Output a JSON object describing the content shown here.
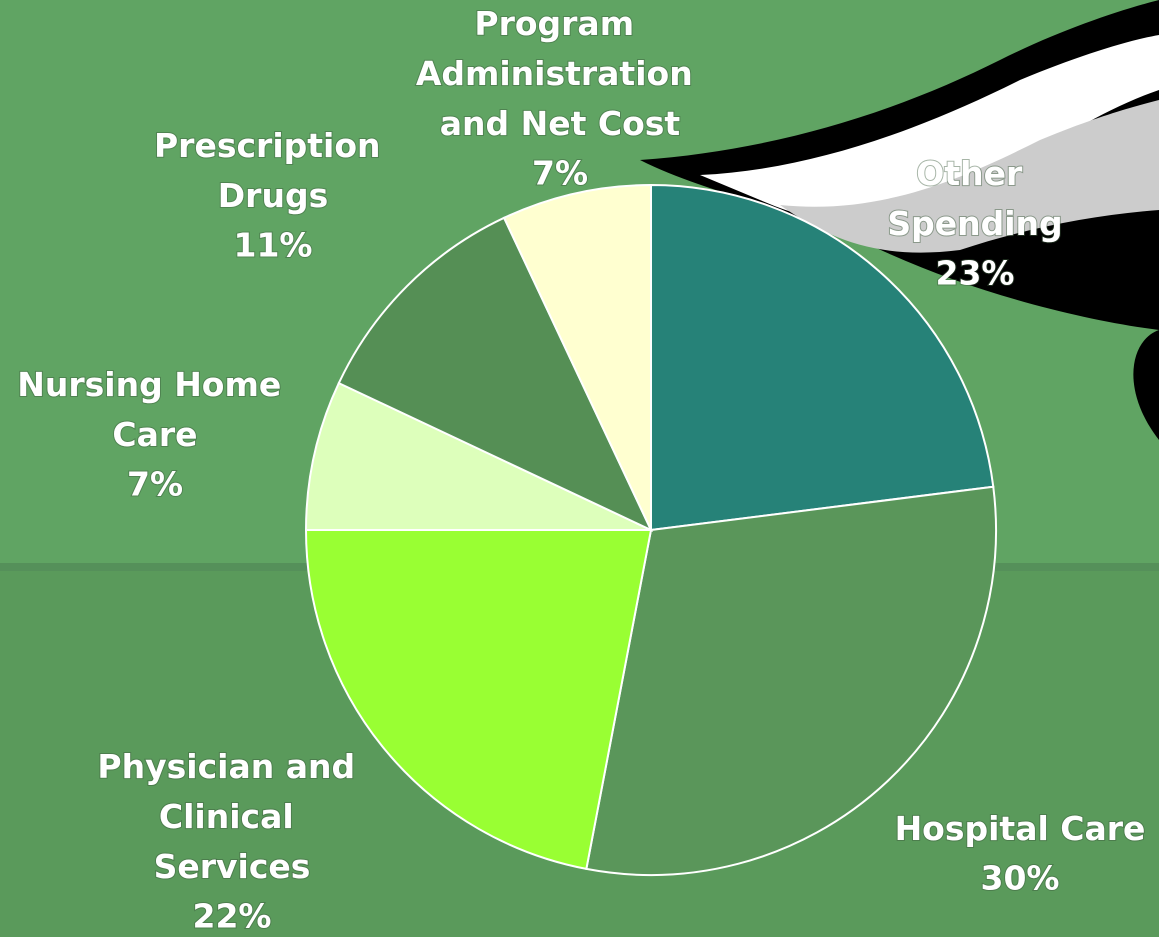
{
  "chart_data": {
    "type": "pie",
    "categories": [
      "Other Spending",
      "Hospital Care",
      "Physician and Clinical Services",
      "Nursing Home Care",
      "Prescription Drugs",
      "Program Administration and Net Cost"
    ],
    "values": [
      23,
      30,
      22,
      7,
      11,
      7
    ],
    "value_labels": [
      "23%",
      "30%",
      "22%",
      "7%",
      "11%",
      "7%"
    ],
    "colors": [
      "#268278",
      "#5a965a",
      "#99ff33",
      "#ddffbb",
      "#558f55",
      "#ffffd0"
    ]
  }
}
